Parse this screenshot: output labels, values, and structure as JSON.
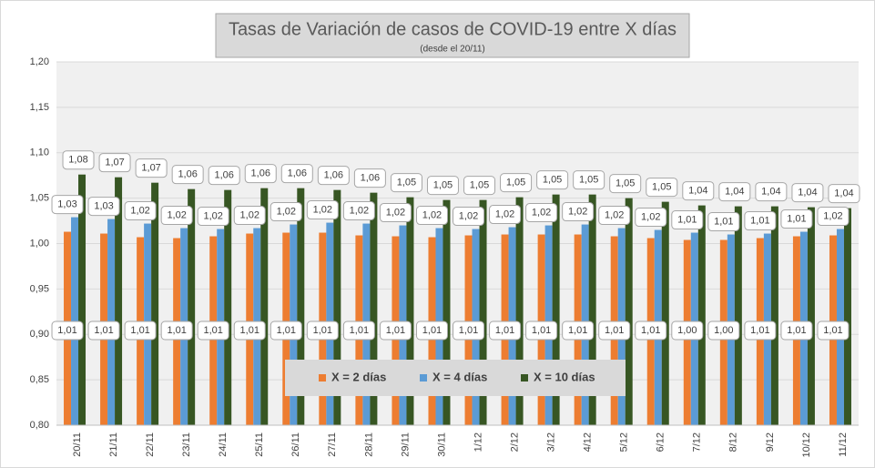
{
  "chart_data": {
    "type": "bar",
    "title": "Tasas de Variación de casos de COVID-19 entre X días",
    "subtitle": "(desde el 20/11)",
    "categories": [
      "20/11",
      "21/11",
      "22/11",
      "23/11",
      "24/11",
      "25/11",
      "26/11",
      "27/11",
      "28/11",
      "29/11",
      "30/11",
      "1/12",
      "2/12",
      "3/12",
      "4/12",
      "5/12",
      "6/12",
      "7/12",
      "8/12",
      "9/12",
      "10/12",
      "11/12"
    ],
    "series": [
      {
        "name": "X = 2 días",
        "color": "#ed7d31",
        "values": [
          1.013,
          1.011,
          1.007,
          1.006,
          1.008,
          1.011,
          1.012,
          1.012,
          1.009,
          1.008,
          1.007,
          1.009,
          1.01,
          1.01,
          1.01,
          1.008,
          1.006,
          1.004,
          1.004,
          1.006,
          1.008,
          1.009
        ],
        "value_labels": [
          "1,01",
          "1,01",
          "1,01",
          "1,01",
          "1,01",
          "1,01",
          "1,01",
          "1,01",
          "1,01",
          "1,01",
          "1,01",
          "1,01",
          "1,01",
          "1,01",
          "1,01",
          "1,01",
          "1,01",
          "1,00",
          "1,00",
          "1,01",
          "1,01",
          "1,01"
        ]
      },
      {
        "name": "X = 4 días",
        "color": "#5b9bd5",
        "values": [
          1.029,
          1.027,
          1.022,
          1.017,
          1.016,
          1.017,
          1.021,
          1.023,
          1.022,
          1.02,
          1.017,
          1.016,
          1.018,
          1.02,
          1.021,
          1.017,
          1.015,
          1.012,
          1.01,
          1.011,
          1.013,
          1.016
        ],
        "value_labels": [
          "1,03",
          "1,03",
          "1,02",
          "1,02",
          "1,02",
          "1,02",
          "1,02",
          "1,02",
          "1,02",
          "1,02",
          "1,02",
          "1,02",
          "1,02",
          "1,02",
          "1,02",
          "1,02",
          "1,02",
          "1,01",
          "1,01",
          "1,01",
          "1,01",
          "1,02"
        ]
      },
      {
        "name": "X = 10 días",
        "color": "#375623",
        "values": [
          1.076,
          1.073,
          1.067,
          1.06,
          1.059,
          1.061,
          1.061,
          1.059,
          1.056,
          1.051,
          1.048,
          1.048,
          1.051,
          1.054,
          1.054,
          1.05,
          1.046,
          1.042,
          1.041,
          1.041,
          1.04,
          1.039
        ],
        "value_labels": [
          "1,08",
          "1,07",
          "1,07",
          "1,06",
          "1,06",
          "1,06",
          "1,06",
          "1,06",
          "1,06",
          "1,05",
          "1,05",
          "1,05",
          "1,05",
          "1,05",
          "1,05",
          "1,05",
          "1,05",
          "1,04",
          "1,04",
          "1,04",
          "1,04",
          "1,04"
        ]
      }
    ],
    "ylim": [
      0.8,
      1.2
    ],
    "yticks": [
      {
        "value": 0.8,
        "label": "0,80"
      },
      {
        "value": 0.85,
        "label": "0,85"
      },
      {
        "value": 0.9,
        "label": "0,90"
      },
      {
        "value": 0.95,
        "label": "0,95"
      },
      {
        "value": 1.0,
        "label": "1,00"
      },
      {
        "value": 1.05,
        "label": "1,05"
      },
      {
        "value": 1.1,
        "label": "1,10"
      },
      {
        "value": 1.15,
        "label": "1,15"
      },
      {
        "value": 1.2,
        "label": "1,20"
      }
    ],
    "grid": true
  }
}
